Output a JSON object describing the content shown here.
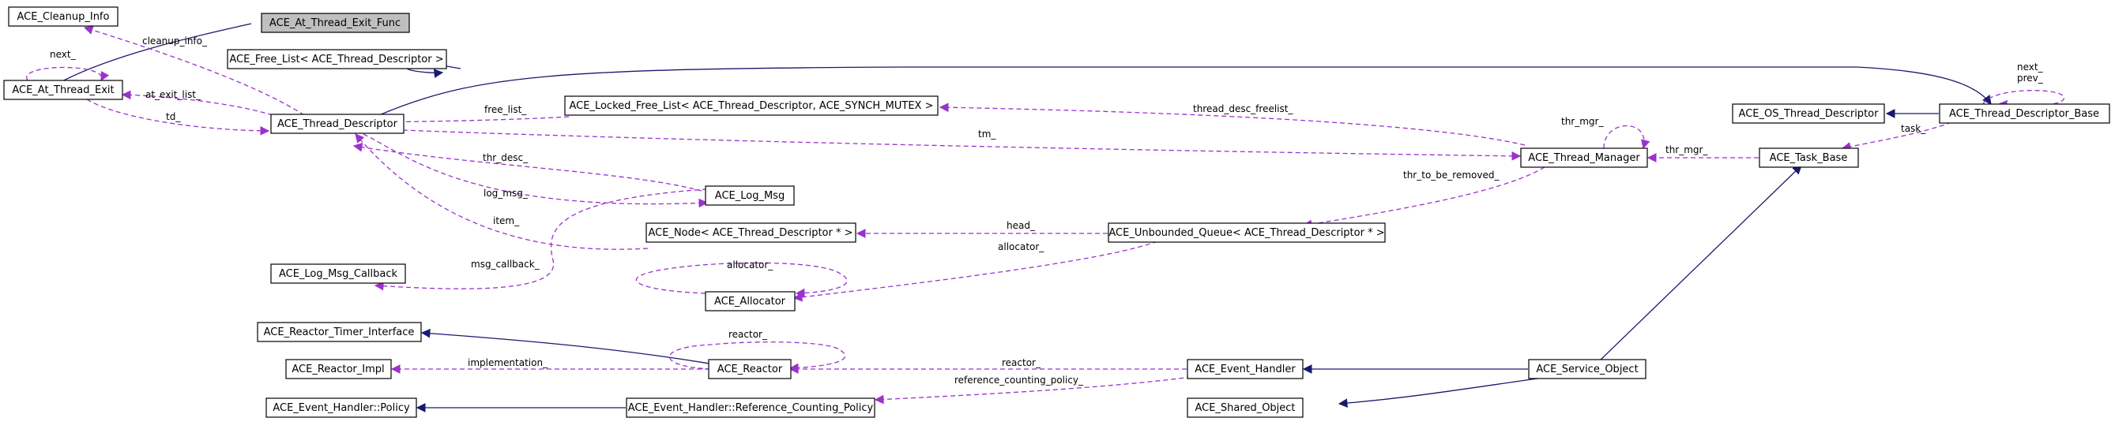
{
  "nodes": {
    "cleanup_info": "ACE_Cleanup_Info",
    "at_thread_exit_func": "ACE_At_Thread_Exit_Func",
    "free_list": "ACE_Free_List< ACE_Thread_Descriptor >",
    "at_thread_exit": "ACE_At_Thread_Exit",
    "thread_descriptor": "ACE_Thread_Descriptor",
    "locked_free_list": "ACE_Locked_Free_List< ACE_Thread_Descriptor, ACE_SYNCH_MUTEX >",
    "log_msg": "ACE_Log_Msg",
    "node_td": "ACE_Node< ACE_Thread_Descriptor * >",
    "log_msg_callback": "ACE_Log_Msg_Callback",
    "allocator": "ACE_Allocator",
    "reactor_timer_interface": "ACE_Reactor_Timer_Interface",
    "reactor_impl": "ACE_Reactor_Impl",
    "reactor": "ACE_Reactor",
    "event_handler_policy": "ACE_Event_Handler::Policy",
    "reference_counting_policy": "ACE_Event_Handler::Reference_Counting_Policy",
    "os_thread_descriptor": "ACE_OS_Thread_Descriptor",
    "thread_descriptor_base": "ACE_Thread_Descriptor_Base",
    "thread_manager": "ACE_Thread_Manager",
    "task_base": "ACE_Task_Base",
    "unbounded_queue": "ACE_Unbounded_Queue< ACE_Thread_Descriptor * >",
    "event_handler": "ACE_Event_Handler",
    "service_object": "ACE_Service_Object",
    "shared_object": "ACE_Shared_Object"
  },
  "edge_labels": {
    "cleanup_info": "cleanup_info_",
    "next": "next_",
    "at_exit_list": "at_exit_list_",
    "td": "td_",
    "free_list": "free_list_",
    "thread_desc_freelist": "thread_desc_freelist_",
    "tm": "tm_",
    "thr_desc": "thr_desc_",
    "log_msg": "log_msg_",
    "item": "item_",
    "msg_callback": "msg_callback_",
    "allocator_self": "allocator_",
    "allocator_queue": "allocator_",
    "head": "head_",
    "thr_to_be_removed": "thr_to_be_removed_",
    "thr_mgr_self": "thr_mgr_",
    "thr_mgr_task": "thr_mgr_",
    "task": "task_",
    "next_prev": "next_",
    "next_prev2": "prev_",
    "reactor_self": "reactor_",
    "implementation": "implementation_",
    "reactor_eh": "reactor_",
    "reference_counting_policy": "reference_counting_policy_"
  },
  "colors": {
    "usage_edge": "#9a32cd",
    "inheritance_edge": "#191970",
    "highlight_fill": "#bfbfbf",
    "node_border": "#000000"
  }
}
